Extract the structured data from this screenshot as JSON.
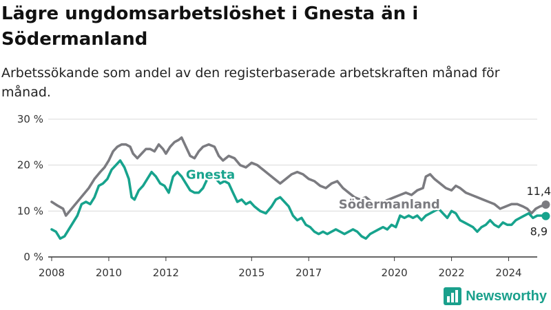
{
  "title": "Lägre ungdomsarbetslöshet i Gnesta än i Södermanland",
  "subtitle": "Arbetssökande som andel av den registerbaserade arbetskraften månad för månad.",
  "brand": {
    "name": "Newsworthy",
    "logo_icon": "bar-chart-logo-icon"
  },
  "colors": {
    "gnesta": "#17a38d",
    "sodermanland": "#7b7b80",
    "grid": "#d9d9d9",
    "axis": "#333333"
  },
  "chart_data": {
    "type": "line",
    "y_ticks": [
      "0 %",
      "10 %",
      "20 %",
      "30 %"
    ],
    "y_tick_values": [
      0,
      10,
      20,
      30
    ],
    "x_ticks": [
      "2008",
      "2010",
      "2012",
      "2015",
      "2017",
      "2020",
      "2022",
      "2024"
    ],
    "x_tick_values": [
      2008,
      2010,
      2012,
      2015,
      2017,
      2020,
      2022,
      2024
    ],
    "xlim": [
      2008,
      2025
    ],
    "ylim": [
      0,
      30
    ],
    "grid": "horizontal",
    "series": [
      {
        "name": "Södermanland",
        "color": "#7b7b80",
        "end_label": "11,4 %",
        "points": [
          [
            2008.0,
            12.0
          ],
          [
            2008.2,
            11.2
          ],
          [
            2008.4,
            10.5
          ],
          [
            2008.5,
            9.0
          ],
          [
            2008.7,
            10.5
          ],
          [
            2008.9,
            12.0
          ],
          [
            2009.1,
            13.5
          ],
          [
            2009.3,
            15.0
          ],
          [
            2009.5,
            17.0
          ],
          [
            2009.7,
            18.5
          ],
          [
            2009.85,
            19.5
          ],
          [
            2010.0,
            21.0
          ],
          [
            2010.15,
            23.0
          ],
          [
            2010.3,
            24.0
          ],
          [
            2010.45,
            24.5
          ],
          [
            2010.6,
            24.5
          ],
          [
            2010.75,
            24.0
          ],
          [
            2010.85,
            22.5
          ],
          [
            2011.0,
            21.5
          ],
          [
            2011.15,
            22.5
          ],
          [
            2011.3,
            23.5
          ],
          [
            2011.45,
            23.5
          ],
          [
            2011.6,
            23.0
          ],
          [
            2011.75,
            24.5
          ],
          [
            2011.9,
            23.5
          ],
          [
            2012.0,
            22.5
          ],
          [
            2012.15,
            24.0
          ],
          [
            2012.3,
            25.0
          ],
          [
            2012.45,
            25.5
          ],
          [
            2012.55,
            26.0
          ],
          [
            2012.7,
            24.0
          ],
          [
            2012.85,
            22.0
          ],
          [
            2013.0,
            21.5
          ],
          [
            2013.15,
            23.0
          ],
          [
            2013.3,
            24.0
          ],
          [
            2013.5,
            24.5
          ],
          [
            2013.7,
            24.0
          ],
          [
            2013.85,
            22.0
          ],
          [
            2014.0,
            21.0
          ],
          [
            2014.2,
            22.0
          ],
          [
            2014.4,
            21.5
          ],
          [
            2014.6,
            20.0
          ],
          [
            2014.8,
            19.5
          ],
          [
            2015.0,
            20.5
          ],
          [
            2015.2,
            20.0
          ],
          [
            2015.4,
            19.0
          ],
          [
            2015.6,
            18.0
          ],
          [
            2015.8,
            17.0
          ],
          [
            2016.0,
            16.0
          ],
          [
            2016.2,
            17.0
          ],
          [
            2016.4,
            18.0
          ],
          [
            2016.6,
            18.5
          ],
          [
            2016.8,
            18.0
          ],
          [
            2017.0,
            17.0
          ],
          [
            2017.2,
            16.5
          ],
          [
            2017.4,
            15.5
          ],
          [
            2017.6,
            15.0
          ],
          [
            2017.8,
            16.0
          ],
          [
            2018.0,
            16.5
          ],
          [
            2018.2,
            15.0
          ],
          [
            2018.4,
            14.0
          ],
          [
            2018.6,
            13.0
          ],
          [
            2018.8,
            12.5
          ],
          [
            2019.0,
            13.0
          ],
          [
            2019.2,
            12.0
          ],
          [
            2019.4,
            11.5
          ],
          [
            2019.6,
            12.0
          ],
          [
            2019.8,
            12.5
          ],
          [
            2020.0,
            13.0
          ],
          [
            2020.2,
            13.5
          ],
          [
            2020.4,
            14.0
          ],
          [
            2020.6,
            13.5
          ],
          [
            2020.8,
            14.5
          ],
          [
            2021.0,
            15.0
          ],
          [
            2021.1,
            17.5
          ],
          [
            2021.25,
            18.0
          ],
          [
            2021.4,
            17.0
          ],
          [
            2021.6,
            16.0
          ],
          [
            2021.8,
            15.0
          ],
          [
            2022.0,
            14.5
          ],
          [
            2022.15,
            15.5
          ],
          [
            2022.3,
            15.0
          ],
          [
            2022.5,
            14.0
          ],
          [
            2022.7,
            13.5
          ],
          [
            2022.9,
            13.0
          ],
          [
            2023.1,
            12.5
          ],
          [
            2023.3,
            12.0
          ],
          [
            2023.5,
            11.5
          ],
          [
            2023.7,
            10.5
          ],
          [
            2023.9,
            11.0
          ],
          [
            2024.1,
            11.5
          ],
          [
            2024.3,
            11.5
          ],
          [
            2024.5,
            11.0
          ],
          [
            2024.65,
            10.5
          ],
          [
            2024.8,
            9.5
          ],
          [
            2024.95,
            10.5
          ],
          [
            2025.1,
            11.0
          ],
          [
            2025.3,
            11.4
          ]
        ]
      },
      {
        "name": "Gnesta",
        "color": "#17a38d",
        "end_label": "8,9 %",
        "points": [
          [
            2008.0,
            6.0
          ],
          [
            2008.15,
            5.5
          ],
          [
            2008.3,
            4.0
          ],
          [
            2008.45,
            4.5
          ],
          [
            2008.6,
            6.0
          ],
          [
            2008.75,
            7.5
          ],
          [
            2008.9,
            9.0
          ],
          [
            2009.05,
            11.5
          ],
          [
            2009.2,
            12.0
          ],
          [
            2009.35,
            11.5
          ],
          [
            2009.5,
            13.0
          ],
          [
            2009.65,
            15.5
          ],
          [
            2009.8,
            16.0
          ],
          [
            2009.95,
            17.0
          ],
          [
            2010.1,
            19.0
          ],
          [
            2010.25,
            20.0
          ],
          [
            2010.4,
            21.0
          ],
          [
            2010.55,
            19.5
          ],
          [
            2010.7,
            17.0
          ],
          [
            2010.8,
            13.0
          ],
          [
            2010.9,
            12.5
          ],
          [
            2011.05,
            14.5
          ],
          [
            2011.2,
            15.5
          ],
          [
            2011.35,
            17.0
          ],
          [
            2011.5,
            18.5
          ],
          [
            2011.65,
            17.5
          ],
          [
            2011.8,
            16.0
          ],
          [
            2011.95,
            15.5
          ],
          [
            2012.1,
            14.0
          ],
          [
            2012.25,
            17.5
          ],
          [
            2012.4,
            18.5
          ],
          [
            2012.55,
            17.5
          ],
          [
            2012.7,
            16.0
          ],
          [
            2012.85,
            14.5
          ],
          [
            2013.0,
            14.0
          ],
          [
            2013.15,
            14.0
          ],
          [
            2013.3,
            15.0
          ],
          [
            2013.45,
            17.0
          ],
          [
            2013.6,
            18.0
          ],
          [
            2013.75,
            17.0
          ],
          [
            2013.9,
            16.0
          ],
          [
            2014.05,
            16.5
          ],
          [
            2014.2,
            16.0
          ],
          [
            2014.35,
            14.0
          ],
          [
            2014.5,
            12.0
          ],
          [
            2014.65,
            12.5
          ],
          [
            2014.8,
            11.5
          ],
          [
            2014.95,
            12.0
          ],
          [
            2015.1,
            11.0
          ],
          [
            2015.3,
            10.0
          ],
          [
            2015.5,
            9.5
          ],
          [
            2015.7,
            11.0
          ],
          [
            2015.85,
            12.5
          ],
          [
            2016.0,
            13.0
          ],
          [
            2016.15,
            12.0
          ],
          [
            2016.3,
            11.0
          ],
          [
            2016.45,
            9.0
          ],
          [
            2016.6,
            8.0
          ],
          [
            2016.75,
            8.5
          ],
          [
            2016.9,
            7.0
          ],
          [
            2017.05,
            6.5
          ],
          [
            2017.2,
            5.5
          ],
          [
            2017.35,
            5.0
          ],
          [
            2017.5,
            5.5
          ],
          [
            2017.65,
            5.0
          ],
          [
            2017.8,
            5.5
          ],
          [
            2017.95,
            6.0
          ],
          [
            2018.1,
            5.5
          ],
          [
            2018.25,
            5.0
          ],
          [
            2018.4,
            5.5
          ],
          [
            2018.55,
            6.0
          ],
          [
            2018.7,
            5.5
          ],
          [
            2018.85,
            4.5
          ],
          [
            2019.0,
            4.0
          ],
          [
            2019.15,
            5.0
          ],
          [
            2019.3,
            5.5
          ],
          [
            2019.45,
            6.0
          ],
          [
            2019.6,
            6.5
          ],
          [
            2019.75,
            6.0
          ],
          [
            2019.9,
            7.0
          ],
          [
            2020.05,
            6.5
          ],
          [
            2020.2,
            9.0
          ],
          [
            2020.35,
            8.5
          ],
          [
            2020.5,
            9.0
          ],
          [
            2020.65,
            8.5
          ],
          [
            2020.8,
            9.0
          ],
          [
            2020.95,
            8.0
          ],
          [
            2021.1,
            9.0
          ],
          [
            2021.25,
            9.5
          ],
          [
            2021.4,
            10.0
          ],
          [
            2021.55,
            10.5
          ],
          [
            2021.7,
            9.5
          ],
          [
            2021.85,
            8.5
          ],
          [
            2022.0,
            10.0
          ],
          [
            2022.15,
            9.5
          ],
          [
            2022.3,
            8.0
          ],
          [
            2022.45,
            7.5
          ],
          [
            2022.6,
            7.0
          ],
          [
            2022.75,
            6.5
          ],
          [
            2022.9,
            5.5
          ],
          [
            2023.05,
            6.5
          ],
          [
            2023.2,
            7.0
          ],
          [
            2023.35,
            8.0
          ],
          [
            2023.5,
            7.0
          ],
          [
            2023.65,
            6.5
          ],
          [
            2023.8,
            7.5
          ],
          [
            2023.95,
            7.0
          ],
          [
            2024.1,
            7.0
          ],
          [
            2024.25,
            8.0
          ],
          [
            2024.4,
            8.5
          ],
          [
            2024.55,
            9.0
          ],
          [
            2024.7,
            9.5
          ],
          [
            2024.85,
            8.5
          ],
          [
            2025.0,
            9.0
          ],
          [
            2025.15,
            9.0
          ],
          [
            2025.3,
            8.9
          ]
        ]
      }
    ],
    "inline_labels": [
      "Gnesta",
      "Södermanland"
    ]
  }
}
